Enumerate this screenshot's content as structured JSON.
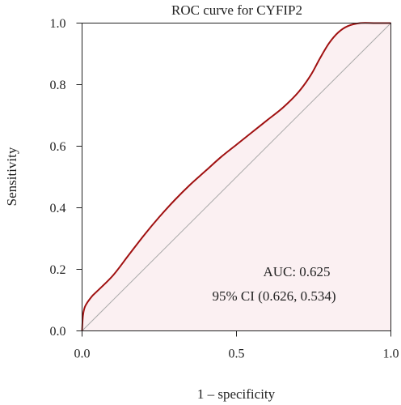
{
  "chart_data": {
    "type": "line",
    "title": "ROC curve for CYFIP2",
    "xlabel": "1 – specificity",
    "ylabel": "Sensitivity",
    "xlim": [
      0,
      1
    ],
    "ylim": [
      0,
      1
    ],
    "x_ticks": [
      0.0,
      0.5,
      1.0
    ],
    "x_tick_labels": [
      "0.0",
      "0.5",
      "1.0"
    ],
    "y_ticks": [
      0.0,
      0.2,
      0.4,
      0.6,
      0.8,
      1.0
    ],
    "y_tick_labels": [
      "0.0",
      "0.2",
      "0.4",
      "0.6",
      "0.8",
      "1.0"
    ],
    "grid": false,
    "series": [
      {
        "x": [
          0.0,
          0.003,
          0.01,
          0.03,
          0.05,
          0.1,
          0.15,
          0.2,
          0.25,
          0.3,
          0.35,
          0.4,
          0.45,
          0.5,
          0.55,
          0.6,
          0.65,
          0.7,
          0.74,
          0.77,
          0.8,
          0.83,
          0.86,
          0.9,
          0.95,
          1.0
        ],
        "y": [
          0.0,
          0.05,
          0.08,
          0.11,
          0.13,
          0.18,
          0.245,
          0.31,
          0.37,
          0.425,
          0.475,
          0.52,
          0.565,
          0.605,
          0.645,
          0.685,
          0.725,
          0.775,
          0.83,
          0.885,
          0.935,
          0.97,
          0.99,
          1.0,
          1.0,
          1.0
        ],
        "color": "#a01010",
        "fill": "#fbf0f2"
      }
    ],
    "reference_line": {
      "x": [
        0,
        1
      ],
      "y": [
        0,
        1
      ],
      "color": "#a9a9a9"
    },
    "annotations": [
      "AUC: 0.625",
      "95% CI (0.626, 0.534)"
    ]
  }
}
